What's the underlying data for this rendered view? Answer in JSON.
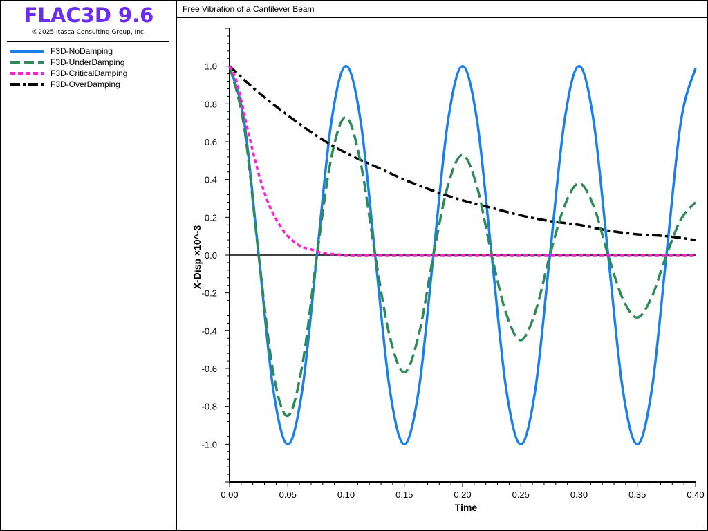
{
  "app": {
    "title": "FLAC3D 9.6",
    "copyright": "©2025 Itasca Consulting Group, Inc.",
    "title_color": "#6a2cf0"
  },
  "legend": [
    {
      "label": "F3D-NoDamping",
      "color": "#1a7fe8",
      "style": "solid"
    },
    {
      "label": "F3D-UnderDamping",
      "color": "#2e8b57",
      "style": "dashed"
    },
    {
      "label": "F3D-CriticalDamping",
      "color": "#ff1fd0",
      "style": "dotted"
    },
    {
      "label": "F3D-OverDamping",
      "color": "#000000",
      "style": "dashdot"
    }
  ],
  "chart_data": {
    "type": "line",
    "title": "Free Vibration of a Cantilever Beam",
    "xlabel": "Time",
    "ylabel": "X-Disp ×10^-3",
    "xlim": [
      0.0,
      0.4
    ],
    "ylim": [
      -1.2,
      1.2
    ],
    "x_ticks": [
      "0.00",
      "0.05",
      "0.10",
      "0.15",
      "0.20",
      "0.25",
      "0.30",
      "0.35",
      "0.40"
    ],
    "y_ticks": [
      "1.0",
      "0.8",
      "0.6",
      "0.4",
      "0.2",
      "0.0",
      "-0.2",
      "-0.4",
      "-0.6",
      "-0.8",
      "-1.0"
    ],
    "y_tick_values": [
      1.0,
      0.8,
      0.6,
      0.4,
      0.2,
      0.0,
      -0.2,
      -0.4,
      -0.6,
      -0.8,
      -1.0
    ],
    "grid": false,
    "zero_line": true,
    "series": [
      {
        "name": "F3D-NoDamping",
        "color": "#1a7fe8",
        "style": "solid",
        "x": [
          0,
          0.0125,
          0.025,
          0.0375,
          0.05,
          0.0625,
          0.075,
          0.0875,
          0.1,
          0.1125,
          0.125,
          0.1375,
          0.15,
          0.1625,
          0.175,
          0.1875,
          0.2,
          0.2125,
          0.225,
          0.2375,
          0.25,
          0.2625,
          0.275,
          0.2875,
          0.3,
          0.3125,
          0.325,
          0.3375,
          0.35,
          0.3625,
          0.375,
          0.3875,
          0.4
        ],
        "y": [
          1.0,
          0.71,
          0.0,
          -0.71,
          -1.0,
          -0.71,
          0.0,
          0.71,
          1.0,
          0.71,
          0.0,
          -0.71,
          -1.0,
          -0.71,
          0.0,
          0.71,
          1.0,
          0.71,
          0.0,
          -0.71,
          -1.0,
          -0.71,
          0.0,
          0.71,
          1.0,
          0.71,
          0.0,
          -0.71,
          -1.0,
          -0.71,
          0.0,
          0.71,
          0.99
        ]
      },
      {
        "name": "F3D-UnderDamping",
        "color": "#2e8b57",
        "style": "dashed",
        "x": [
          0,
          0.0125,
          0.025,
          0.0375,
          0.05,
          0.0625,
          0.075,
          0.0875,
          0.1,
          0.1125,
          0.125,
          0.1375,
          0.15,
          0.1625,
          0.175,
          0.1875,
          0.2,
          0.2125,
          0.225,
          0.2375,
          0.25,
          0.2625,
          0.275,
          0.2875,
          0.3,
          0.3125,
          0.325,
          0.3375,
          0.35,
          0.3625,
          0.375,
          0.3875,
          0.4
        ],
        "y": [
          1.0,
          0.68,
          0.0,
          -0.62,
          -0.85,
          -0.58,
          0.0,
          0.52,
          0.73,
          0.49,
          0.0,
          -0.43,
          -0.62,
          -0.42,
          0.0,
          0.37,
          0.53,
          0.36,
          0.0,
          -0.31,
          -0.45,
          -0.3,
          0.0,
          0.26,
          0.38,
          0.26,
          0.0,
          -0.23,
          -0.33,
          -0.22,
          0.0,
          0.19,
          0.28
        ]
      },
      {
        "name": "F3D-CriticalDamping",
        "color": "#ff1fd0",
        "style": "dotted",
        "x": [
          0,
          0.005,
          0.01,
          0.015,
          0.02,
          0.025,
          0.03,
          0.035,
          0.04,
          0.045,
          0.05,
          0.06,
          0.07,
          0.08,
          0.09,
          0.1,
          0.125,
          0.15,
          0.2,
          0.25,
          0.3,
          0.35,
          0.4
        ],
        "y": [
          1.0,
          0.94,
          0.82,
          0.68,
          0.55,
          0.43,
          0.33,
          0.25,
          0.19,
          0.14,
          0.1,
          0.05,
          0.03,
          0.01,
          0.005,
          0.0,
          0.0,
          0.0,
          0.0,
          0.0,
          0.0,
          0.0,
          0.0
        ]
      },
      {
        "name": "F3D-OverDamping",
        "color": "#000000",
        "style": "dashdot",
        "x": [
          0,
          0.025,
          0.05,
          0.075,
          0.1,
          0.125,
          0.15,
          0.175,
          0.2,
          0.225,
          0.25,
          0.275,
          0.3,
          0.325,
          0.35,
          0.375,
          0.4
        ],
        "y": [
          1.0,
          0.86,
          0.74,
          0.63,
          0.54,
          0.47,
          0.4,
          0.34,
          0.29,
          0.25,
          0.21,
          0.18,
          0.16,
          0.13,
          0.11,
          0.1,
          0.08
        ]
      }
    ]
  }
}
